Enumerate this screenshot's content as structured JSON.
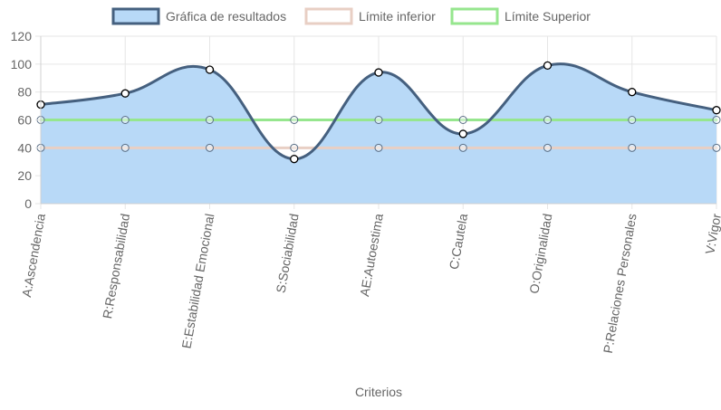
{
  "chart_data": {
    "type": "line",
    "title": "",
    "xlabel": "Criterios",
    "ylabel": "",
    "ylim": [
      0,
      120
    ],
    "yticks": [
      0,
      20,
      40,
      60,
      80,
      100,
      120
    ],
    "grid": true,
    "legend_position": "top",
    "categories": [
      "A:Ascendencia",
      "R:Responsabilidad",
      "E:Estabilidad Emocional",
      "S:Sociabilidad",
      "AE:Autoestima",
      "C:Cautela",
      "O:Originalidad",
      "P:Relaciones Personales",
      "V:Vigor"
    ],
    "series": [
      {
        "name": "Gráfica de resultados",
        "values": [
          71,
          79,
          96,
          32,
          94,
          50,
          99,
          80,
          67
        ],
        "border_color": "#45607f",
        "fill_color": "#b8d9f7",
        "filled": true
      },
      {
        "name": "Límite inferior",
        "values": [
          40,
          40,
          40,
          40,
          40,
          40,
          40,
          40,
          40
        ],
        "border_color": "#e8cfc4",
        "fill_color": "#ffffff",
        "filled": false
      },
      {
        "name": "Límite Superior",
        "values": [
          60,
          60,
          60,
          60,
          60,
          60,
          60,
          60,
          60
        ],
        "border_color": "#96e68e",
        "fill_color": "#ffffff",
        "filled": false
      }
    ]
  }
}
